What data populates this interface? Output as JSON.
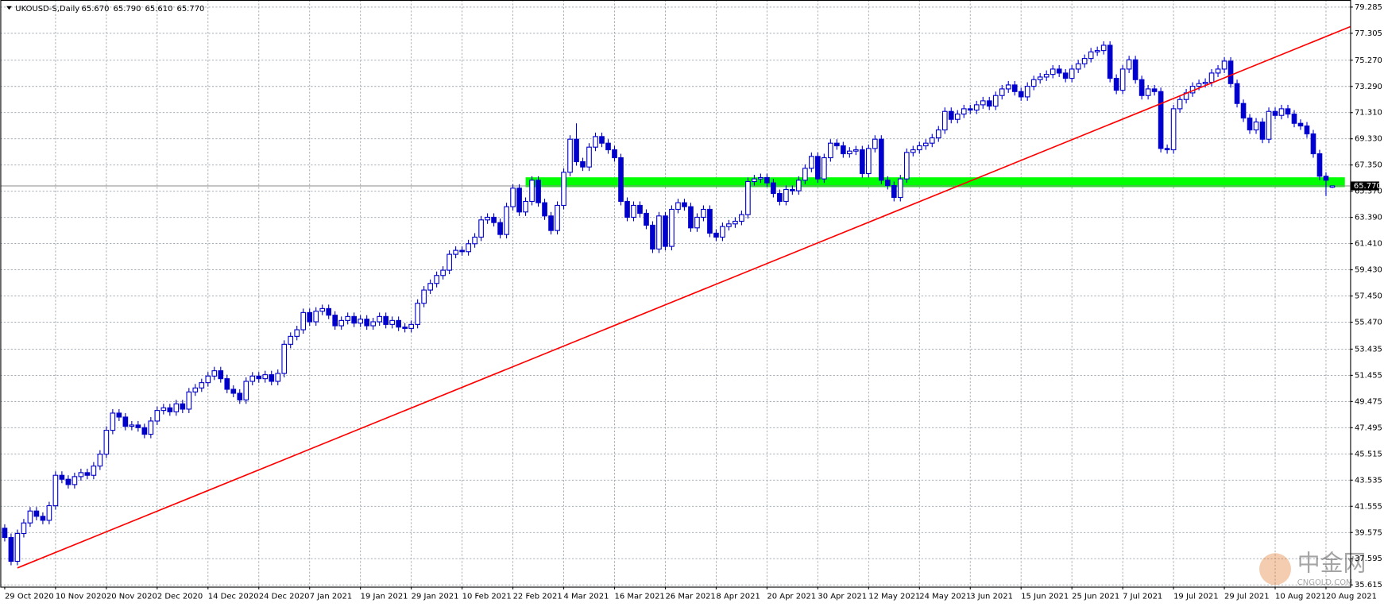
{
  "chart_data": {
    "type": "candlestick",
    "title": "UKOUSD-S,Daily",
    "title_values": [
      "65.670",
      "65.790",
      "65.610",
      "65.770"
    ],
    "color": "#0000cc",
    "grid": true,
    "ylim": [
      35.48,
      79.82
    ],
    "yticks": [
      79.285,
      77.305,
      {
        "value": 75.27,
        "label": "75.270"
      },
      {
        "value": 73.29,
        "label": "73.290"
      },
      {
        "value": 71.31,
        "label": "71.310"
      },
      {
        "value": 69.33,
        "label": "69.330"
      },
      {
        "value": 67.35,
        "label": "67.350"
      },
      {
        "value": 65.37,
        "label": "65.370"
      },
      {
        "value": 63.39,
        "label": "63.390"
      },
      {
        "value": 61.41,
        "label": "61.410"
      },
      {
        "value": 59.43,
        "label": "59.430"
      },
      {
        "value": 57.45,
        "label": "57.450"
      },
      {
        "value": 55.47,
        "label": "55.470"
      },
      53.435,
      51.455,
      49.475,
      47.495,
      45.515,
      43.535,
      41.555,
      39.575,
      37.595,
      35.615
    ],
    "last_price": {
      "value": 65.77,
      "label": "65.770"
    },
    "support_zone": {
      "ylim": [
        65.68,
        66.42
      ],
      "color": "#00ff00"
    },
    "trendline": {
      "y": [
        36.9,
        77.8
      ],
      "color": "#ff0000"
    },
    "watermark": [
      "中金网",
      "CNGOLD.COM"
    ],
    "categories": [
      "29 Oct 2020",
      null,
      null,
      null,
      null,
      null,
      null,
      null,
      "10 Nov 2020",
      null,
      null,
      null,
      null,
      null,
      null,
      null,
      "20 Nov 2020",
      null,
      null,
      null,
      null,
      null,
      null,
      null,
      "2 Dec 2020",
      null,
      null,
      null,
      null,
      null,
      null,
      null,
      "14 Dec 2020",
      null,
      null,
      null,
      null,
      null,
      null,
      null,
      "24 Dec 2020",
      null,
      null,
      null,
      null,
      null,
      null,
      null,
      "7 Jan 2021",
      null,
      null,
      null,
      null,
      null,
      null,
      null,
      "19 Jan 2021",
      null,
      null,
      null,
      null,
      null,
      null,
      null,
      "29 Jan 2021",
      null,
      null,
      null,
      null,
      null,
      null,
      null,
      "10 Feb 2021",
      null,
      null,
      null,
      null,
      null,
      null,
      null,
      "22 Feb 2021",
      null,
      null,
      null,
      null,
      null,
      null,
      null,
      "4 Mar 2021",
      null,
      null,
      null,
      null,
      null,
      null,
      null,
      "16 Mar 2021",
      null,
      null,
      null,
      null,
      null,
      null,
      null,
      "26 Mar 2021",
      null,
      null,
      null,
      null,
      null,
      null,
      null,
      "8 Apr 2021",
      null,
      null,
      null,
      null,
      null,
      null,
      null,
      "20 Apr 2021",
      null,
      null,
      null,
      null,
      null,
      null,
      null,
      "30 Apr 2021",
      null,
      null,
      null,
      null,
      null,
      null,
      null,
      "12 May 2021",
      null,
      null,
      null,
      null,
      null,
      null,
      null,
      "24 May 2021",
      null,
      null,
      null,
      null,
      null,
      null,
      null,
      "3 Jun 2021",
      null,
      null,
      null,
      null,
      null,
      null,
      null,
      "15 Jun 2021",
      null,
      null,
      null,
      null,
      null,
      null,
      null,
      "25 Jun 2021",
      null,
      null,
      null,
      null,
      null,
      null,
      null,
      "7 Jul 2021",
      null,
      null,
      null,
      null,
      null,
      null,
      null,
      "19 Jul 2021",
      null,
      null,
      null,
      null,
      null,
      null,
      null,
      "29 Jul 2021",
      null,
      null,
      null,
      null,
      null,
      null,
      null,
      "10 Aug 2021",
      null,
      null,
      null,
      null,
      null,
      null,
      null,
      "20 Aug 2021",
      null
    ],
    "open": [
      39.9,
      39.2,
      37.4,
      39.5,
      40.3,
      41.2,
      40.8,
      40.5,
      41.6,
      43.9,
      43.6,
      43.2,
      43.8,
      44.1,
      43.9,
      44.6,
      45.5,
      47.3,
      48.6,
      48.3,
      47.6,
      47.7,
      47.5,
      47.0,
      48.0,
      48.8,
      49.0,
      48.7,
      49.3,
      48.9,
      50.2,
      50.5,
      50.9,
      51.4,
      51.8,
      51.2,
      50.4,
      50.1,
      49.6,
      51.0,
      51.4,
      51.2,
      51.5,
      51.0,
      51.6,
      53.8,
      54.4,
      54.9,
      56.2,
      55.5,
      56.3,
      56.5,
      56.0,
      55.2,
      55.6,
      55.9,
      55.4,
      55.7,
      55.2,
      55.5,
      55.9,
      55.3,
      55.6,
      55.1,
      55.0,
      55.3,
      56.9,
      57.9,
      58.4,
      59.0,
      59.4,
      60.6,
      60.9,
      60.8,
      61.4,
      61.9,
      63.2,
      63.4,
      63.0,
      62.1,
      64.2,
      65.6,
      63.8,
      64.6,
      66.2,
      64.5,
      63.5,
      62.4,
      64.3,
      66.8,
      69.3,
      67.6,
      67.2,
      68.7,
      69.5,
      69.0,
      68.5,
      67.9,
      64.6,
      63.4,
      64.3,
      63.7,
      62.8,
      61.0,
      63.5,
      61.2,
      64.0,
      64.5,
      64.2,
      62.6,
      63.4,
      64.0,
      62.2,
      61.9,
      62.7,
      62.9,
      63.1,
      63.6,
      66.1,
      66.3,
      66.4,
      66.0,
      65.2,
      64.6,
      65.5,
      65.4,
      66.2,
      67.1,
      68.0,
      66.3,
      67.9,
      69.0,
      68.8,
      68.2,
      68.4,
      68.5,
      66.7,
      68.6,
      69.3,
      66.2,
      65.8,
      64.9,
      66.3,
      68.3,
      68.5,
      68.8,
      69.0,
      69.4,
      70.0,
      71.4,
      70.8,
      71.2,
      71.6,
      71.5,
      71.9,
      72.2,
      71.8,
      72.6,
      73.1,
      73.4,
      72.9,
      72.5,
      73.3,
      73.8,
      74.0,
      74.2,
      74.6,
      74.3,
      73.9,
      74.6,
      75.0,
      75.4,
      75.9,
      76.0,
      76.4,
      73.9,
      73.0,
      74.6,
      75.3,
      73.8,
      72.6,
      73.1,
      72.9,
      68.6,
      68.5,
      71.6,
      72.3,
      72.8,
      73.3,
      73.5,
      73.6,
      74.3,
      74.6,
      75.2,
      73.5,
      72.0,
      70.9,
      70.0,
      70.6,
      69.3,
      71.4,
      71.1,
      71.6,
      71.2,
      70.5,
      70.3,
      69.7,
      68.2,
      66.5,
      65.67
    ],
    "high": [
      40.2,
      39.5,
      39.8,
      40.6,
      41.5,
      41.5,
      41.1,
      41.9,
      44.2,
      44.2,
      43.9,
      44.1,
      44.4,
      44.4,
      44.9,
      45.8,
      47.6,
      48.9,
      48.9,
      48.6,
      48.0,
      48.0,
      47.8,
      48.3,
      49.1,
      49.3,
      49.3,
      49.6,
      49.6,
      50.5,
      50.8,
      51.2,
      51.7,
      52.1,
      52.1,
      51.5,
      50.7,
      50.4,
      51.3,
      51.7,
      51.7,
      51.8,
      51.8,
      51.9,
      54.1,
      54.7,
      55.2,
      56.5,
      56.5,
      56.6,
      56.8,
      56.8,
      56.3,
      55.9,
      56.2,
      56.2,
      56.0,
      56.0,
      55.8,
      56.2,
      56.2,
      55.9,
      55.9,
      55.4,
      55.6,
      57.2,
      58.2,
      58.7,
      59.3,
      59.7,
      60.9,
      61.2,
      61.2,
      61.7,
      62.2,
      63.5,
      63.7,
      63.7,
      63.3,
      64.5,
      65.9,
      65.9,
      64.9,
      66.5,
      66.5,
      64.8,
      63.8,
      64.6,
      67.1,
      69.6,
      70.5,
      67.9,
      69.0,
      69.8,
      69.8,
      69.3,
      68.8,
      68.2,
      64.9,
      64.6,
      64.6,
      64.0,
      63.1,
      63.8,
      63.8,
      64.3,
      64.8,
      64.8,
      64.5,
      63.7,
      64.3,
      64.3,
      62.5,
      63.0,
      63.2,
      63.4,
      63.9,
      66.4,
      66.6,
      66.7,
      66.7,
      66.3,
      65.5,
      65.8,
      65.8,
      66.5,
      67.4,
      68.3,
      68.3,
      68.2,
      69.3,
      69.3,
      69.1,
      68.7,
      68.8,
      68.8,
      68.9,
      69.6,
      69.6,
      66.5,
      66.1,
      66.6,
      68.6,
      68.8,
      69.1,
      69.3,
      69.7,
      70.3,
      71.7,
      71.7,
      71.5,
      71.9,
      71.9,
      72.2,
      72.5,
      72.5,
      72.9,
      73.4,
      73.7,
      73.7,
      73.2,
      73.6,
      74.1,
      74.3,
      74.5,
      74.9,
      74.9,
      74.6,
      74.9,
      75.3,
      75.7,
      76.2,
      76.3,
      76.7,
      76.7,
      74.2,
      74.9,
      75.6,
      75.6,
      74.1,
      73.4,
      73.4,
      73.2,
      68.9,
      71.9,
      72.6,
      73.1,
      73.6,
      73.8,
      73.9,
      74.6,
      74.9,
      75.5,
      75.5,
      73.8,
      72.3,
      71.2,
      70.9,
      70.9,
      71.7,
      71.7,
      71.9,
      71.9,
      71.5,
      70.8,
      70.6,
      70.0,
      68.5,
      66.8,
      65.79
    ],
    "low": [
      38.9,
      37.1,
      37.1,
      39.2,
      40.0,
      40.5,
      40.2,
      40.2,
      41.3,
      43.3,
      42.9,
      42.9,
      43.5,
      43.6,
      43.6,
      44.3,
      45.2,
      47.0,
      48.0,
      47.3,
      47.3,
      47.2,
      46.7,
      46.7,
      47.7,
      48.5,
      48.4,
      48.4,
      48.6,
      48.6,
      49.9,
      50.2,
      50.6,
      51.1,
      50.9,
      50.1,
      49.8,
      49.3,
      49.3,
      50.7,
      50.9,
      50.9,
      50.7,
      50.7,
      51.3,
      53.5,
      54.1,
      54.6,
      55.2,
      55.2,
      56.0,
      55.7,
      54.9,
      54.9,
      55.3,
      55.1,
      55.1,
      54.9,
      54.9,
      55.2,
      55.0,
      55.0,
      54.8,
      54.7,
      54.7,
      55.0,
      56.6,
      57.6,
      58.1,
      58.7,
      59.1,
      60.3,
      60.5,
      60.5,
      61.1,
      61.6,
      62.9,
      62.7,
      61.8,
      61.8,
      63.9,
      63.5,
      63.5,
      64.3,
      64.2,
      63.2,
      62.1,
      62.1,
      64.0,
      66.5,
      67.3,
      66.9,
      66.9,
      68.4,
      68.7,
      68.2,
      67.6,
      64.3,
      63.1,
      63.1,
      63.4,
      62.5,
      60.7,
      60.7,
      60.9,
      60.9,
      63.7,
      63.9,
      62.3,
      62.3,
      63.1,
      61.9,
      61.6,
      61.6,
      62.4,
      62.6,
      62.8,
      63.3,
      65.8,
      66.0,
      65.7,
      64.9,
      64.3,
      64.3,
      65.1,
      65.1,
      65.9,
      66.8,
      66.0,
      66.0,
      67.6,
      68.5,
      67.9,
      67.9,
      68.1,
      66.4,
      66.4,
      68.3,
      65.9,
      65.5,
      64.6,
      64.6,
      66.0,
      68.0,
      68.2,
      68.5,
      68.7,
      69.1,
      69.7,
      70.5,
      70.5,
      70.9,
      71.2,
      71.2,
      71.6,
      71.5,
      71.5,
      72.3,
      72.8,
      72.6,
      72.2,
      72.2,
      73.0,
      73.5,
      73.7,
      73.9,
      74.0,
      73.6,
      73.6,
      74.3,
      74.7,
      75.1,
      75.6,
      75.7,
      73.6,
      72.7,
      72.7,
      74.3,
      73.5,
      72.3,
      72.3,
      72.6,
      68.3,
      68.2,
      68.2,
      71.3,
      72.0,
      72.5,
      73.0,
      73.2,
      73.3,
      74.0,
      74.3,
      73.2,
      71.7,
      70.6,
      69.7,
      69.7,
      69.0,
      69.0,
      70.8,
      70.8,
      70.9,
      70.2,
      70.0,
      69.4,
      67.9,
      66.2,
      65.0,
      65.61
    ],
    "close": [
      39.2,
      37.4,
      39.5,
      40.3,
      41.2,
      40.8,
      40.5,
      41.6,
      43.9,
      43.6,
      43.2,
      43.8,
      44.1,
      43.9,
      44.6,
      45.5,
      47.3,
      48.6,
      48.3,
      47.6,
      47.7,
      47.5,
      47.0,
      48.0,
      48.8,
      49.0,
      48.7,
      49.3,
      48.9,
      50.2,
      50.5,
      50.9,
      51.4,
      51.8,
      51.2,
      50.4,
      50.1,
      49.6,
      51.0,
      51.4,
      51.2,
      51.5,
      51.0,
      51.6,
      53.8,
      54.4,
      54.9,
      56.2,
      55.5,
      56.3,
      56.5,
      56.0,
      55.2,
      55.6,
      55.9,
      55.4,
      55.7,
      55.2,
      55.5,
      55.9,
      55.3,
      55.6,
      55.1,
      55.0,
      55.3,
      56.9,
      57.9,
      58.4,
      59.0,
      59.4,
      60.6,
      60.9,
      60.8,
      61.4,
      61.9,
      63.2,
      63.4,
      63.0,
      62.1,
      64.2,
      65.6,
      63.8,
      64.6,
      66.2,
      64.5,
      63.5,
      62.4,
      64.3,
      66.8,
      69.3,
      67.6,
      67.2,
      68.7,
      69.5,
      69.0,
      68.5,
      67.9,
      64.6,
      63.4,
      64.3,
      63.7,
      62.8,
      61.0,
      63.5,
      61.2,
      64.0,
      64.5,
      64.2,
      62.6,
      63.4,
      64.0,
      62.2,
      61.9,
      62.7,
      62.9,
      63.1,
      63.6,
      66.1,
      66.3,
      66.4,
      66.0,
      65.2,
      64.6,
      65.5,
      65.4,
      66.2,
      67.1,
      68.0,
      66.3,
      67.9,
      69.0,
      68.8,
      68.2,
      68.4,
      68.5,
      66.7,
      68.6,
      69.3,
      66.2,
      65.8,
      64.9,
      66.3,
      68.3,
      68.5,
      68.8,
      69.0,
      69.4,
      70.0,
      71.4,
      70.8,
      71.2,
      71.6,
      71.5,
      71.9,
      72.2,
      71.8,
      72.6,
      73.1,
      73.4,
      72.9,
      72.5,
      73.3,
      73.8,
      74.0,
      74.2,
      74.6,
      74.3,
      73.9,
      74.6,
      75.0,
      75.4,
      75.9,
      76.0,
      76.4,
      73.9,
      73.0,
      74.6,
      75.3,
      73.8,
      72.6,
      73.1,
      72.9,
      68.6,
      68.5,
      71.6,
      72.3,
      72.8,
      73.3,
      73.5,
      73.6,
      74.3,
      74.6,
      75.2,
      73.5,
      72.0,
      70.9,
      70.0,
      70.6,
      69.3,
      71.4,
      71.1,
      71.6,
      71.2,
      70.5,
      70.3,
      69.7,
      68.2,
      66.5,
      66.2,
      65.77
    ]
  }
}
